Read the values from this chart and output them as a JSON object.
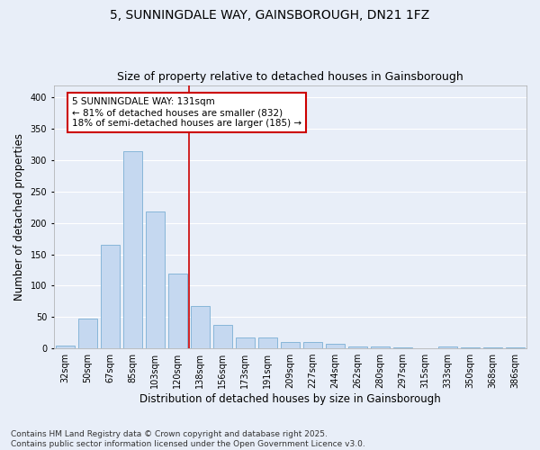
{
  "title_line1": "5, SUNNINGDALE WAY, GAINSBOROUGH, DN21 1FZ",
  "title_line2": "Size of property relative to detached houses in Gainsborough",
  "xlabel": "Distribution of detached houses by size in Gainsborough",
  "ylabel": "Number of detached properties",
  "categories": [
    "32sqm",
    "50sqm",
    "67sqm",
    "85sqm",
    "103sqm",
    "120sqm",
    "138sqm",
    "156sqm",
    "173sqm",
    "191sqm",
    "209sqm",
    "227sqm",
    "244sqm",
    "262sqm",
    "280sqm",
    "297sqm",
    "315sqm",
    "333sqm",
    "350sqm",
    "368sqm",
    "386sqm"
  ],
  "values": [
    5,
    47,
    165,
    315,
    218,
    120,
    68,
    38,
    17,
    17,
    10,
    10,
    8,
    3,
    3,
    1,
    0,
    3,
    2,
    1,
    1
  ],
  "bar_color": "#c5d8f0",
  "bar_edge_color": "#7aafd4",
  "vline_x_index": 5.5,
  "vline_color": "#cc0000",
  "annotation_text": "5 SUNNINGDALE WAY: 131sqm\n← 81% of detached houses are smaller (832)\n18% of semi-detached houses are larger (185) →",
  "annotation_box_color": "#ffffff",
  "annotation_box_edge_color": "#cc0000",
  "ylim": [
    0,
    420
  ],
  "yticks": [
    0,
    50,
    100,
    150,
    200,
    250,
    300,
    350,
    400
  ],
  "footer_text": "Contains HM Land Registry data © Crown copyright and database right 2025.\nContains public sector information licensed under the Open Government Licence v3.0.",
  "background_color": "#e8eef8",
  "plot_background_color": "#e8eef8",
  "grid_color": "#ffffff",
  "title_fontsize": 10,
  "subtitle_fontsize": 9,
  "axis_label_fontsize": 8.5,
  "tick_fontsize": 7,
  "annotation_fontsize": 7.5,
  "footer_fontsize": 6.5
}
